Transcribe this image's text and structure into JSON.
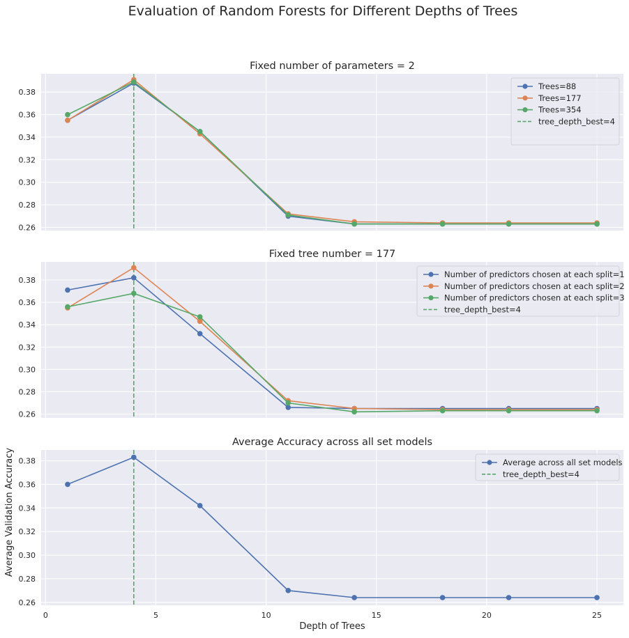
{
  "figure": {
    "suptitle": "Evaluation of Random Forests for Different Depths of Trees"
  },
  "chart_data": [
    {
      "type": "line",
      "title": "Fixed number of parameters = 2",
      "xlabel": "",
      "ylabel": "",
      "xlim": [
        -0.2,
        26.2
      ],
      "ylim": [
        0.2572,
        0.3962
      ],
      "x": [
        1,
        4,
        7,
        11,
        14,
        18,
        21,
        25
      ],
      "yticks": [
        0.26,
        0.28,
        0.3,
        0.32,
        0.34,
        0.36,
        0.38
      ],
      "ytick_labels": [
        "0.26",
        "0.28",
        "0.30",
        "0.32",
        "0.34",
        "0.36",
        "0.38"
      ],
      "xtick_labels_visible": false,
      "grid": true,
      "legend_position": "top-right",
      "series": [
        {
          "name": "Trees=88",
          "color": "#4c72b0",
          "values": [
            0.355,
            0.388,
            0.345,
            0.27,
            0.263,
            0.263,
            0.263,
            0.263
          ]
        },
        {
          "name": "Trees=177",
          "color": "#dd8452",
          "values": [
            0.355,
            0.391,
            0.343,
            0.272,
            0.265,
            0.264,
            0.264,
            0.264
          ]
        },
        {
          "name": "Trees=354",
          "color": "#55a868",
          "values": [
            0.36,
            0.389,
            0.345,
            0.271,
            0.263,
            0.263,
            0.263,
            0.263
          ]
        }
      ],
      "vline": {
        "x": 4,
        "label": "tree_depth_best=4",
        "color": "#55a868"
      }
    },
    {
      "type": "line",
      "title": "Fixed tree number = 177",
      "xlabel": "",
      "ylabel": "",
      "xlim": [
        -0.2,
        26.2
      ],
      "ylim": [
        0.2566,
        0.3962
      ],
      "x": [
        1,
        4,
        7,
        11,
        14,
        18,
        21,
        25
      ],
      "yticks": [
        0.26,
        0.28,
        0.3,
        0.32,
        0.34,
        0.36,
        0.38
      ],
      "ytick_labels": [
        "0.26",
        "0.28",
        "0.30",
        "0.32",
        "0.34",
        "0.36",
        "0.38"
      ],
      "xtick_labels_visible": false,
      "grid": true,
      "legend_position": "top-right",
      "series": [
        {
          "name": "Number of predictors chosen at each split=1",
          "color": "#4c72b0",
          "values": [
            0.371,
            0.382,
            0.332,
            0.266,
            0.265,
            0.265,
            0.265,
            0.265
          ]
        },
        {
          "name": "Number of predictors chosen at each split=2",
          "color": "#dd8452",
          "values": [
            0.355,
            0.391,
            0.343,
            0.272,
            0.265,
            0.264,
            0.264,
            0.264
          ]
        },
        {
          "name": "Number of predictors chosen at each split=3",
          "color": "#55a868",
          "values": [
            0.356,
            0.368,
            0.347,
            0.27,
            0.262,
            0.263,
            0.263,
            0.263
          ]
        }
      ],
      "vline": {
        "x": 4,
        "label": "tree_depth_best=4",
        "color": "#55a868"
      }
    },
    {
      "type": "line",
      "title": "Average Accuracy across all set models",
      "xlabel": "Depth of Trees",
      "ylabel": "Average Validation Accuracy",
      "xlim": [
        -0.2,
        26.2
      ],
      "ylim": [
        0.2575,
        0.3892
      ],
      "x": [
        1,
        4,
        7,
        11,
        14,
        18,
        21,
        25
      ],
      "yticks": [
        0.26,
        0.28,
        0.3,
        0.32,
        0.34,
        0.36,
        0.38
      ],
      "ytick_labels": [
        "0.26",
        "0.28",
        "0.30",
        "0.32",
        "0.34",
        "0.36",
        "0.38"
      ],
      "xticks": [
        0,
        5,
        10,
        15,
        20,
        25
      ],
      "xtick_labels": [
        "0",
        "5",
        "10",
        "15",
        "20",
        "25"
      ],
      "xtick_labels_visible": true,
      "grid": true,
      "legend_position": "top-right",
      "series": [
        {
          "name": "Average across all set models",
          "color": "#4c72b0",
          "values": [
            0.36,
            0.383,
            0.342,
            0.27,
            0.264,
            0.264,
            0.264,
            0.264
          ]
        }
      ],
      "vline": {
        "x": 4,
        "label": "tree_depth_best=4",
        "color": "#55a868"
      }
    }
  ]
}
